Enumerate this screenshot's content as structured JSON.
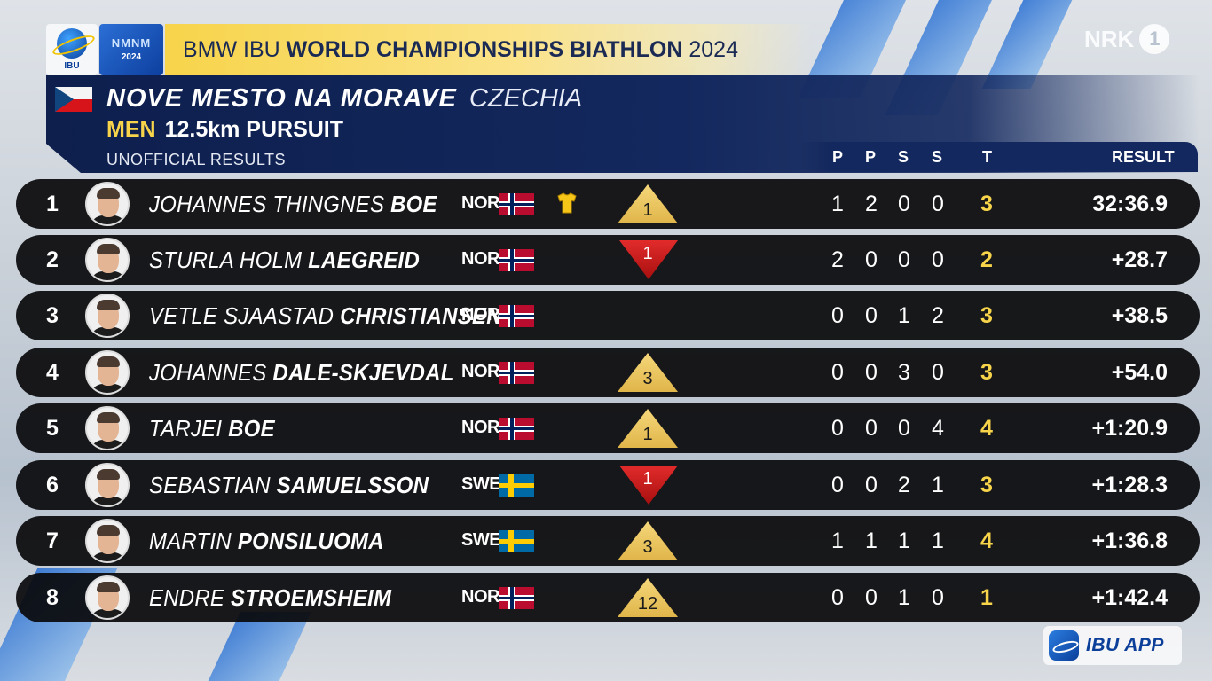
{
  "broadcast": {
    "title_prefix": "BMW IBU",
    "title_main": "WORLD CHAMPIONSHIPS BIATHLON",
    "title_year": "2024",
    "ibu_logo_text": "IBU",
    "nmnm_mark": "NMNM",
    "nmnm_year": "2024",
    "channel_logo": "NRK",
    "channel_number": "1"
  },
  "event": {
    "venue": "NOVE MESTO NA MORAVE",
    "country": "CZECHIA",
    "gender": "MEN",
    "discipline": "12.5km PURSUIT",
    "status": "UNOFFICIAL RESULTS"
  },
  "columns": [
    "P",
    "P",
    "S",
    "S",
    "T",
    "RESULT"
  ],
  "results": [
    {
      "rank": "1",
      "first": "JOHANNES THINGNES",
      "last": "BOE",
      "nat": "NOR",
      "flag": "nor",
      "yellow_bib": true,
      "move": "up",
      "move_n": "1",
      "shots": [
        "1",
        "2",
        "0",
        "0"
      ],
      "total": "3",
      "result": "32:36.9"
    },
    {
      "rank": "2",
      "first": "STURLA HOLM",
      "last": "LAEGREID",
      "nat": "NOR",
      "flag": "nor",
      "yellow_bib": false,
      "move": "down",
      "move_n": "1",
      "shots": [
        "2",
        "0",
        "0",
        "0"
      ],
      "total": "2",
      "result": "+28.7"
    },
    {
      "rank": "3",
      "first": "VETLE SJAASTAD",
      "last": "CHRISTIANSEN",
      "nat": "NOR",
      "flag": "nor",
      "yellow_bib": false,
      "move": "none",
      "move_n": "",
      "shots": [
        "0",
        "0",
        "1",
        "2"
      ],
      "total": "3",
      "result": "+38.5"
    },
    {
      "rank": "4",
      "first": "JOHANNES",
      "last": "DALE-SKJEVDAL",
      "nat": "NOR",
      "flag": "nor",
      "yellow_bib": false,
      "move": "up",
      "move_n": "3",
      "shots": [
        "0",
        "0",
        "3",
        "0"
      ],
      "total": "3",
      "result": "+54.0"
    },
    {
      "rank": "5",
      "first": "TARJEI",
      "last": "BOE",
      "nat": "NOR",
      "flag": "nor",
      "yellow_bib": false,
      "move": "up",
      "move_n": "1",
      "shots": [
        "0",
        "0",
        "0",
        "4"
      ],
      "total": "4",
      "result": "+1:20.9"
    },
    {
      "rank": "6",
      "first": "SEBASTIAN",
      "last": "SAMUELSSON",
      "nat": "SWE",
      "flag": "swe",
      "yellow_bib": false,
      "move": "down",
      "move_n": "1",
      "shots": [
        "0",
        "0",
        "2",
        "1"
      ],
      "total": "3",
      "result": "+1:28.3"
    },
    {
      "rank": "7",
      "first": "MARTIN",
      "last": "PONSILUOMA",
      "nat": "SWE",
      "flag": "swe",
      "yellow_bib": false,
      "move": "up",
      "move_n": "3",
      "shots": [
        "1",
        "1",
        "1",
        "1"
      ],
      "total": "4",
      "result": "+1:36.8"
    },
    {
      "rank": "8",
      "first": "ENDRE",
      "last": "STROEMSHEIM",
      "nat": "NOR",
      "flag": "nor",
      "yellow_bib": false,
      "move": "up",
      "move_n": "12",
      "shots": [
        "0",
        "0",
        "1",
        "0"
      ],
      "total": "1",
      "result": "+1:42.4"
    }
  ],
  "app_badge": {
    "label": "IBU APP"
  },
  "colors": {
    "accent_gold": "#f7d44a",
    "panel_navy": "#13285e",
    "move_up": "#e0b54a",
    "move_down": "#c41a1a"
  }
}
